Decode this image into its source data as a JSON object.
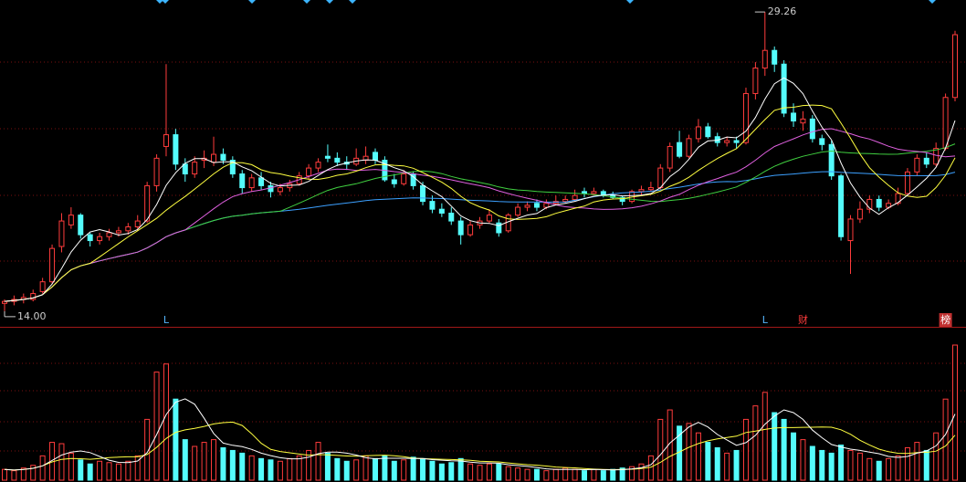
{
  "chart_data": {
    "type": "candlestick",
    "up_color": "#ff3c3c",
    "down_color": "#54fcfc",
    "ylim": [
      13.25,
      29.87
    ],
    "vlim": [
      0,
      100
    ],
    "max_label": 29.26,
    "min_label": {
      "value": 14,
      "label": "14.00"
    },
    "ohlc": [
      [
        14.4,
        14.6,
        14.0,
        14.5
      ],
      [
        14.5,
        14.8,
        14.3,
        14.6
      ],
      [
        14.6,
        14.9,
        14.4,
        14.7
      ],
      [
        14.6,
        15.1,
        14.5,
        14.9
      ],
      [
        15.0,
        15.7,
        14.9,
        15.5
      ],
      [
        15.5,
        17.4,
        15.4,
        17.2
      ],
      [
        17.3,
        19.0,
        17.0,
        18.6
      ],
      [
        18.4,
        19.3,
        18.2,
        18.9
      ],
      [
        18.9,
        19.0,
        17.7,
        17.9
      ],
      [
        17.9,
        18.0,
        17.3,
        17.6
      ],
      [
        17.6,
        18.0,
        17.4,
        17.8
      ],
      [
        17.8,
        18.2,
        17.6,
        18.0
      ],
      [
        18.0,
        18.3,
        17.8,
        18.1
      ],
      [
        18.1,
        18.5,
        17.9,
        18.3
      ],
      [
        18.3,
        18.9,
        18.1,
        18.6
      ],
      [
        18.6,
        20.6,
        18.5,
        20.4
      ],
      [
        20.4,
        22.0,
        20.1,
        21.8
      ],
      [
        22.4,
        26.6,
        21.9,
        23.0
      ],
      [
        23.0,
        23.3,
        21.2,
        21.5
      ],
      [
        21.5,
        21.8,
        20.6,
        21.0
      ],
      [
        21.0,
        21.9,
        20.8,
        21.6
      ],
      [
        21.7,
        22.2,
        21.3,
        21.8
      ],
      [
        21.6,
        22.9,
        21.4,
        22.0
      ],
      [
        22.0,
        22.3,
        21.5,
        21.7
      ],
      [
        21.7,
        21.9,
        20.8,
        21.0
      ],
      [
        21.0,
        21.2,
        20.0,
        20.3
      ],
      [
        20.3,
        21.0,
        20.1,
        20.8
      ],
      [
        20.8,
        21.1,
        20.2,
        20.4
      ],
      [
        20.4,
        20.6,
        19.8,
        20.1
      ],
      [
        20.1,
        20.5,
        19.9,
        20.3
      ],
      [
        20.3,
        20.7,
        20.1,
        20.5
      ],
      [
        20.5,
        21.1,
        20.4,
        20.9
      ],
      [
        20.9,
        21.5,
        20.7,
        21.3
      ],
      [
        21.3,
        21.8,
        21.1,
        21.6
      ],
      [
        21.9,
        22.5,
        21.6,
        21.8
      ],
      [
        21.8,
        22.1,
        21.4,
        21.6
      ],
      [
        21.6,
        21.9,
        21.2,
        21.5
      ],
      [
        21.5,
        22.3,
        21.4,
        21.8
      ],
      [
        21.7,
        22.4,
        21.5,
        21.9
      ],
      [
        22.1,
        22.3,
        21.5,
        21.7
      ],
      [
        21.7,
        21.9,
        20.6,
        20.7
      ],
      [
        20.7,
        21.0,
        20.3,
        20.5
      ],
      [
        20.5,
        21.2,
        20.4,
        21.0
      ],
      [
        21.0,
        21.1,
        20.2,
        20.4
      ],
      [
        20.4,
        20.6,
        19.4,
        19.6
      ],
      [
        19.6,
        19.9,
        19.0,
        19.2
      ],
      [
        19.2,
        19.5,
        18.8,
        19.0
      ],
      [
        19.0,
        19.3,
        18.4,
        18.6
      ],
      [
        18.6,
        18.8,
        17.4,
        17.9
      ],
      [
        17.9,
        18.6,
        17.8,
        18.4
      ],
      [
        18.4,
        18.8,
        18.2,
        18.6
      ],
      [
        18.6,
        19.2,
        18.5,
        18.9
      ],
      [
        18.5,
        18.7,
        17.8,
        18.0
      ],
      [
        18.1,
        19.0,
        18.0,
        18.9
      ],
      [
        18.9,
        19.5,
        18.8,
        19.3
      ],
      [
        19.3,
        19.6,
        19.1,
        19.4
      ],
      [
        19.5,
        19.7,
        19.1,
        19.3
      ],
      [
        19.3,
        19.7,
        19.2,
        19.5
      ],
      [
        19.5,
        19.9,
        19.4,
        19.6
      ],
      [
        19.6,
        19.9,
        19.5,
        19.7
      ],
      [
        19.7,
        20.2,
        19.6,
        19.9
      ],
      [
        20.1,
        20.3,
        19.8,
        20.0
      ],
      [
        20.0,
        20.3,
        19.9,
        20.1
      ],
      [
        20.1,
        20.2,
        19.8,
        19.9
      ],
      [
        19.9,
        20.1,
        19.7,
        19.8
      ],
      [
        19.8,
        19.9,
        19.4,
        19.6
      ],
      [
        19.6,
        20.2,
        19.5,
        20.1
      ],
      [
        20.1,
        20.4,
        19.9,
        20.2
      ],
      [
        20.2,
        20.6,
        20.1,
        20.3
      ],
      [
        20.3,
        21.5,
        20.2,
        21.3
      ],
      [
        21.3,
        22.6,
        21.1,
        22.4
      ],
      [
        22.6,
        23.2,
        21.8,
        21.9
      ],
      [
        21.9,
        23.0,
        21.8,
        22.8
      ],
      [
        22.8,
        23.8,
        22.6,
        23.4
      ],
      [
        23.4,
        23.6,
        22.8,
        22.9
      ],
      [
        22.9,
        23.1,
        22.4,
        22.6
      ],
      [
        22.6,
        22.9,
        22.4,
        22.7
      ],
      [
        22.7,
        22.9,
        22.3,
        22.6
      ],
      [
        22.6,
        25.4,
        22.5,
        25.1
      ],
      [
        25.1,
        26.7,
        24.8,
        26.4
      ],
      [
        26.4,
        29.26,
        26.0,
        27.3
      ],
      [
        27.3,
        27.5,
        26.2,
        26.6
      ],
      [
        26.6,
        26.8,
        23.9,
        24.1
      ],
      [
        24.1,
        24.6,
        23.4,
        23.7
      ],
      [
        23.6,
        24.2,
        23.2,
        23.8
      ],
      [
        23.8,
        24.0,
        22.6,
        22.8
      ],
      [
        22.8,
        23.0,
        22.2,
        22.5
      ],
      [
        22.5,
        22.7,
        20.7,
        20.9
      ],
      [
        20.9,
        21.0,
        17.6,
        17.8
      ],
      [
        17.6,
        18.9,
        15.9,
        18.7
      ],
      [
        18.7,
        19.6,
        18.5,
        19.2
      ],
      [
        19.2,
        19.9,
        19.0,
        19.7
      ],
      [
        19.7,
        19.9,
        19.1,
        19.3
      ],
      [
        19.3,
        19.7,
        19.2,
        19.5
      ],
      [
        19.5,
        20.3,
        19.4,
        20.0
      ],
      [
        20.0,
        21.3,
        19.9,
        21.1
      ],
      [
        21.1,
        22.0,
        20.9,
        21.8
      ],
      [
        21.8,
        22.1,
        21.3,
        21.5
      ],
      [
        21.5,
        22.6,
        21.4,
        22.3
      ],
      [
        22.3,
        25.1,
        22.2,
        24.9
      ],
      [
        24.9,
        28.3,
        24.7,
        28.1
      ]
    ],
    "volume": [
      8,
      7,
      9,
      11,
      18,
      28,
      27,
      20,
      15,
      12,
      14,
      13,
      12,
      14,
      18,
      45,
      80,
      86,
      60,
      30,
      25,
      28,
      30,
      24,
      22,
      20,
      18,
      16,
      15,
      14,
      16,
      18,
      22,
      28,
      20,
      16,
      14,
      15,
      18,
      16,
      18,
      14,
      15,
      17,
      16,
      14,
      12,
      13,
      16,
      12,
      11,
      12,
      12,
      10,
      9,
      8,
      8,
      7,
      8,
      9,
      8,
      7,
      8,
      7,
      8,
      9,
      10,
      12,
      18,
      45,
      52,
      40,
      42,
      35,
      28,
      24,
      20,
      22,
      45,
      55,
      65,
      50,
      45,
      35,
      30,
      25,
      22,
      20,
      26,
      22,
      20,
      16,
      14,
      16,
      18,
      24,
      28,
      22,
      35,
      60,
      100
    ],
    "events": [
      {
        "index": 17,
        "label": "L",
        "color": "#54b4fc"
      },
      {
        "index": 80,
        "label": "L",
        "color": "#54b4fc"
      },
      {
        "index": 84,
        "label": "财",
        "color": "#ff3c3c"
      },
      {
        "index": 99,
        "label": "榜",
        "color": "#ffffff",
        "background": "#c03030"
      }
    ]
  }
}
